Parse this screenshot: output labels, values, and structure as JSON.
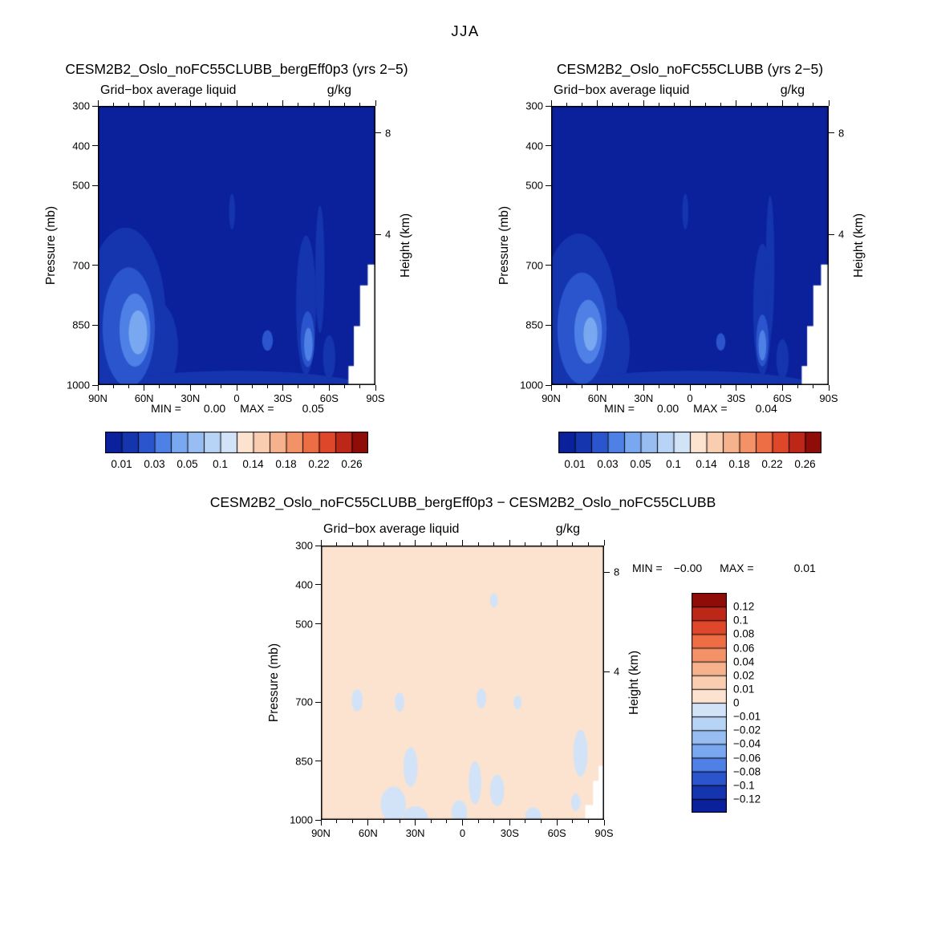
{
  "figure": {
    "title": "JJA"
  },
  "palette": [
    "#0a219b",
    "#1535ae",
    "#2a55cd",
    "#4f80e6",
    "#7aa8f0",
    "#97bdf2",
    "#b7d3f6",
    "#d2e3f8",
    "#fbe3d0",
    "#f9cdb0",
    "#f6b28c",
    "#f39266",
    "#ed6d45",
    "#de472a",
    "#bd2718",
    "#8f0d08"
  ],
  "chart_data": [
    {
      "type": "contour",
      "title": "CESM2B2_Oslo_noFC55CLUBB_bergEff0p3 (yrs 2−5)",
      "subtitle_left": "Grid−box average liquid",
      "subtitle_right": "g/kg",
      "ylabel": "Pressure (mb)",
      "y_ticks": [
        300,
        400,
        500,
        700,
        850,
        1000
      ],
      "ylim": [
        300,
        1000
      ],
      "xlim": [
        90,
        -90
      ],
      "x_ticks": [
        {
          "label": "90N",
          "lat": 90
        },
        {
          "label": "60N",
          "lat": 60
        },
        {
          "label": "30N",
          "lat": 30
        },
        {
          "label": "0",
          "lat": 0
        },
        {
          "label": "30S",
          "lat": -30
        },
        {
          "label": "60S",
          "lat": -60
        },
        {
          "label": "90S",
          "lat": -90
        }
      ],
      "height_axis": {
        "label": "Height (km)",
        "ticks": [
          {
            "label": "8",
            "pressure": 368
          },
          {
            "label": "4",
            "pressure": 622
          }
        ]
      },
      "stats": {
        "min_label": "MIN =",
        "min": "0.00",
        "max_label": "MAX =",
        "max": "0.05"
      },
      "colorbar": {
        "orientation": "horizontal",
        "levels": [
          0.01,
          0.02,
          0.03,
          0.04,
          0.05,
          0.07,
          0.1,
          0.12,
          0.14,
          0.16,
          0.18,
          0.2,
          0.22,
          0.24,
          0.26
        ],
        "labels": [
          {
            "text": "0.01",
            "boundary": 1
          },
          {
            "text": "0.03",
            "boundary": 3
          },
          {
            "text": "0.05",
            "boundary": 5
          },
          {
            "text": "0.1",
            "boundary": 7
          },
          {
            "text": "0.14",
            "boundary": 9
          },
          {
            "text": "0.18",
            "boundary": 11
          },
          {
            "text": "0.22",
            "boundary": 13
          },
          {
            "text": "0.26",
            "boundary": 15
          }
        ]
      },
      "background_index": 0,
      "features": [
        {
          "kind": "ellipse",
          "color_index": 1,
          "lat": 72,
          "pressure": 830,
          "rlat": 26,
          "rpressure": 225
        },
        {
          "kind": "ellipse",
          "color_index": 1,
          "lat": 52,
          "pressure": 905,
          "rlat": 14,
          "rpressure": 115
        },
        {
          "kind": "ellipse",
          "color_index": 1,
          "lat": 0,
          "pressure": 1022,
          "rlat": 92,
          "rpressure": 58
        },
        {
          "kind": "ellipse",
          "color_index": 1,
          "lat": 3,
          "pressure": 565,
          "rlat": 2,
          "rpressure": 45
        },
        {
          "kind": "ellipse",
          "color_index": 1,
          "lat": -45,
          "pressure": 800,
          "rlat": 6.5,
          "rpressure": 175
        },
        {
          "kind": "ellipse",
          "color_index": 1,
          "lat": -54,
          "pressure": 710,
          "rlat": 3,
          "rpressure": 160
        },
        {
          "kind": "ellipse",
          "color_index": 1,
          "lat": -60,
          "pressure": 930,
          "rlat": 4,
          "rpressure": 55
        },
        {
          "kind": "ellipse",
          "color_index": 2,
          "lat": 70,
          "pressure": 855,
          "rlat": 17,
          "rpressure": 150
        },
        {
          "kind": "ellipse",
          "color_index": 3,
          "lat": 66,
          "pressure": 862,
          "rlat": 10,
          "rpressure": 92
        },
        {
          "kind": "ellipse",
          "color_index": 4,
          "lat": 64,
          "pressure": 868,
          "rlat": 6,
          "rpressure": 55
        },
        {
          "kind": "ellipse",
          "color_index": 2,
          "lat": -46,
          "pressure": 885,
          "rlat": 4.5,
          "rpressure": 70
        },
        {
          "kind": "ellipse",
          "color_index": 3,
          "lat": -46.5,
          "pressure": 898,
          "rlat": 2.8,
          "rpressure": 42
        },
        {
          "kind": "ellipse",
          "color_index": 2,
          "lat": -20,
          "pressure": 888,
          "rlat": 3.5,
          "rpressure": 26
        }
      ],
      "mask": [
        [
          -72.5,
          1000
        ],
        [
          -72.5,
          952
        ],
        [
          -76,
          952
        ],
        [
          -76,
          852
        ],
        [
          -80,
          852
        ],
        [
          -80,
          750
        ],
        [
          -85,
          750
        ],
        [
          -85,
          698
        ],
        [
          -90,
          698
        ],
        [
          -90,
          1000
        ]
      ]
    },
    {
      "type": "contour",
      "title": "CESM2B2_Oslo_noFC55CLUBB (yrs 2−5)",
      "subtitle_left": "Grid−box average liquid",
      "subtitle_right": "g/kg",
      "ylabel": "Pressure (mb)",
      "y_ticks": [
        300,
        400,
        500,
        700,
        850,
        1000
      ],
      "ylim": [
        300,
        1000
      ],
      "xlim": [
        90,
        -90
      ],
      "x_ticks": [
        {
          "label": "90N",
          "lat": 90
        },
        {
          "label": "60N",
          "lat": 60
        },
        {
          "label": "30N",
          "lat": 30
        },
        {
          "label": "0",
          "lat": 0
        },
        {
          "label": "30S",
          "lat": -30
        },
        {
          "label": "60S",
          "lat": -60
        },
        {
          "label": "90S",
          "lat": -90
        }
      ],
      "height_axis": {
        "label": "Height (km)",
        "ticks": [
          {
            "label": "8",
            "pressure": 368
          },
          {
            "label": "4",
            "pressure": 622
          }
        ]
      },
      "stats": {
        "min_label": "MIN =",
        "min": "0.00",
        "max_label": "MAX =",
        "max": "0.04"
      },
      "colorbar": {
        "orientation": "horizontal",
        "levels": [
          0.01,
          0.02,
          0.03,
          0.04,
          0.05,
          0.07,
          0.1,
          0.12,
          0.14,
          0.16,
          0.18,
          0.2,
          0.22,
          0.24,
          0.26
        ],
        "labels": [
          {
            "text": "0.01",
            "boundary": 1
          },
          {
            "text": "0.03",
            "boundary": 3
          },
          {
            "text": "0.05",
            "boundary": 5
          },
          {
            "text": "0.1",
            "boundary": 7
          },
          {
            "text": "0.14",
            "boundary": 9
          },
          {
            "text": "0.18",
            "boundary": 11
          },
          {
            "text": "0.22",
            "boundary": 13
          },
          {
            "text": "0.26",
            "boundary": 15
          }
        ]
      },
      "background_index": 0,
      "features": [
        {
          "kind": "ellipse",
          "color_index": 1,
          "lat": 72,
          "pressure": 835,
          "rlat": 25,
          "rpressure": 215
        },
        {
          "kind": "ellipse",
          "color_index": 1,
          "lat": 52,
          "pressure": 908,
          "rlat": 13,
          "rpressure": 108
        },
        {
          "kind": "ellipse",
          "color_index": 1,
          "lat": 0,
          "pressure": 1022,
          "rlat": 92,
          "rpressure": 58
        },
        {
          "kind": "ellipse",
          "color_index": 1,
          "lat": 3,
          "pressure": 565,
          "rlat": 2,
          "rpressure": 45
        },
        {
          "kind": "ellipse",
          "color_index": 1,
          "lat": -47,
          "pressure": 810,
          "rlat": 6,
          "rpressure": 165
        },
        {
          "kind": "ellipse",
          "color_index": 1,
          "lat": -52,
          "pressure": 700,
          "rlat": 2.8,
          "rpressure": 175
        },
        {
          "kind": "ellipse",
          "color_index": 1,
          "lat": -60,
          "pressure": 935,
          "rlat": 4,
          "rpressure": 50
        },
        {
          "kind": "ellipse",
          "color_index": 2,
          "lat": 70,
          "pressure": 858,
          "rlat": 16,
          "rpressure": 140
        },
        {
          "kind": "ellipse",
          "color_index": 3,
          "lat": 66,
          "pressure": 866,
          "rlat": 9,
          "rpressure": 80
        },
        {
          "kind": "ellipse",
          "color_index": 4,
          "lat": 64.5,
          "pressure": 872,
          "rlat": 4.5,
          "rpressure": 42
        },
        {
          "kind": "ellipse",
          "color_index": 2,
          "lat": -47,
          "pressure": 888,
          "rlat": 4,
          "rpressure": 65
        },
        {
          "kind": "ellipse",
          "color_index": 3,
          "lat": -47,
          "pressure": 900,
          "rlat": 2.5,
          "rpressure": 38
        },
        {
          "kind": "ellipse",
          "color_index": 2,
          "lat": -20,
          "pressure": 892,
          "rlat": 3,
          "rpressure": 22
        }
      ],
      "mask": [
        [
          -72.5,
          1000
        ],
        [
          -72.5,
          952
        ],
        [
          -76,
          952
        ],
        [
          -76,
          852
        ],
        [
          -80,
          852
        ],
        [
          -80,
          750
        ],
        [
          -85,
          750
        ],
        [
          -85,
          698
        ],
        [
          -90,
          698
        ],
        [
          -90,
          1000
        ]
      ]
    },
    {
      "type": "contour",
      "title": "CESM2B2_Oslo_noFC55CLUBB_bergEff0p3 − CESM2B2_Oslo_noFC55CLUBB",
      "subtitle_left": "Grid−box average liquid",
      "subtitle_right": "g/kg",
      "ylabel": "Pressure (mb)",
      "y_ticks": [
        300,
        400,
        500,
        700,
        850,
        1000
      ],
      "ylim": [
        300,
        1000
      ],
      "xlim": [
        90,
        -90
      ],
      "x_ticks": [
        {
          "label": "90N",
          "lat": 90
        },
        {
          "label": "60N",
          "lat": 60
        },
        {
          "label": "30N",
          "lat": 30
        },
        {
          "label": "0",
          "lat": 0
        },
        {
          "label": "30S",
          "lat": -30
        },
        {
          "label": "60S",
          "lat": -60
        },
        {
          "label": "90S",
          "lat": -90
        }
      ],
      "height_axis": {
        "label": "Height (km)",
        "ticks": [
          {
            "label": "8",
            "pressure": 368
          },
          {
            "label": "4",
            "pressure": 622
          }
        ]
      },
      "stats": {
        "min_label": "MIN =",
        "min": "−0.00",
        "max_label": "MAX =",
        "max": "0.01"
      },
      "colorbar": {
        "orientation": "vertical",
        "levels": [
          -0.12,
          -0.1,
          -0.08,
          -0.06,
          -0.04,
          -0.02,
          -0.01,
          0,
          0.01,
          0.02,
          0.04,
          0.06,
          0.08,
          0.1,
          0.12
        ],
        "labels": [
          {
            "text": "0.12",
            "boundary": 1
          },
          {
            "text": "0.1",
            "boundary": 2
          },
          {
            "text": "0.08",
            "boundary": 3
          },
          {
            "text": "0.06",
            "boundary": 4
          },
          {
            "text": "0.04",
            "boundary": 5
          },
          {
            "text": "0.02",
            "boundary": 6
          },
          {
            "text": "0.01",
            "boundary": 7
          },
          {
            "text": "0",
            "boundary": 8
          },
          {
            "text": "−0.01",
            "boundary": 9
          },
          {
            "text": "−0.02",
            "boundary": 10
          },
          {
            "text": "−0.04",
            "boundary": 11
          },
          {
            "text": "−0.06",
            "boundary": 12
          },
          {
            "text": "−0.08",
            "boundary": 13
          },
          {
            "text": "−0.1",
            "boundary": 14
          },
          {
            "text": "−0.12",
            "boundary": 15
          }
        ]
      },
      "background_index": 8,
      "features": [
        {
          "kind": "ellipse",
          "color_index": 7,
          "lat": 67,
          "pressure": 695,
          "rlat": 3.5,
          "rpressure": 28
        },
        {
          "kind": "ellipse",
          "color_index": 7,
          "lat": 40,
          "pressure": 700,
          "rlat": 3,
          "rpressure": 25
        },
        {
          "kind": "ellipse",
          "color_index": 7,
          "lat": 44,
          "pressure": 960,
          "rlat": 8,
          "rpressure": 45
        },
        {
          "kind": "ellipse",
          "color_index": 7,
          "lat": 33,
          "pressure": 865,
          "rlat": 4.5,
          "rpressure": 50
        },
        {
          "kind": "ellipse",
          "color_index": 7,
          "lat": 30,
          "pressure": 995,
          "rlat": 8,
          "rpressure": 30
        },
        {
          "kind": "ellipse",
          "color_index": 7,
          "lat": 2,
          "pressure": 980,
          "rlat": 5,
          "rpressure": 30
        },
        {
          "kind": "ellipse",
          "color_index": 7,
          "lat": -8,
          "pressure": 905,
          "rlat": 4,
          "rpressure": 55
        },
        {
          "kind": "ellipse",
          "color_index": 7,
          "lat": -12,
          "pressure": 690,
          "rlat": 3,
          "rpressure": 25
        },
        {
          "kind": "ellipse",
          "color_index": 7,
          "lat": -22,
          "pressure": 925,
          "rlat": 4.5,
          "rpressure": 40
        },
        {
          "kind": "ellipse",
          "color_index": 7,
          "lat": -20,
          "pressure": 440,
          "rlat": 2.5,
          "rpressure": 18
        },
        {
          "kind": "ellipse",
          "color_index": 7,
          "lat": -35,
          "pressure": 700,
          "rlat": 2.5,
          "rpressure": 18
        },
        {
          "kind": "ellipse",
          "color_index": 7,
          "lat": -45,
          "pressure": 990,
          "rlat": 5,
          "rpressure": 22
        },
        {
          "kind": "ellipse",
          "color_index": 7,
          "lat": -75,
          "pressure": 830,
          "rlat": 4.5,
          "rpressure": 60
        },
        {
          "kind": "ellipse",
          "color_index": 7,
          "lat": -72,
          "pressure": 955,
          "rlat": 3,
          "rpressure": 22
        }
      ],
      "mask": [
        [
          -78,
          1000
        ],
        [
          -78,
          962
        ],
        [
          -83,
          962
        ],
        [
          -83,
          900
        ],
        [
          -86.5,
          900
        ],
        [
          -86.5,
          862
        ],
        [
          -90,
          862
        ],
        [
          -90,
          1000
        ]
      ]
    }
  ]
}
